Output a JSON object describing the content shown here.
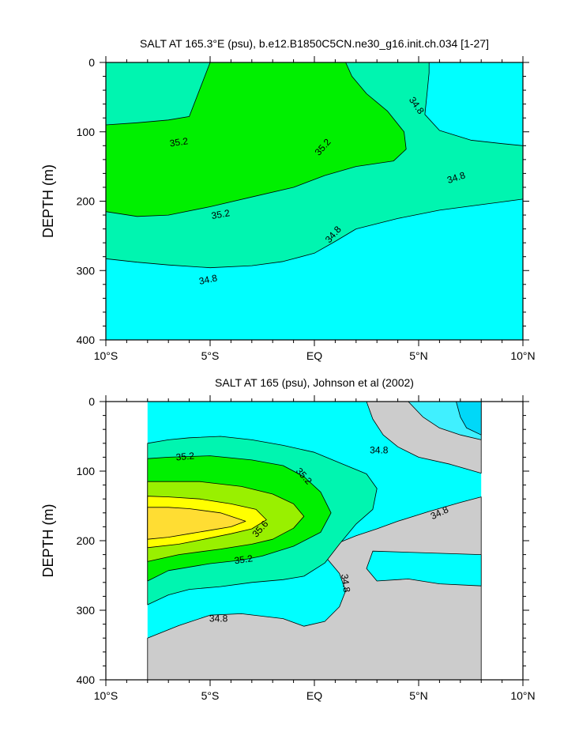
{
  "chart_data": [
    {
      "type": "heatmap",
      "title": "SALT AT 165.3°E (psu), b.e12.B1850C5CN.ne30_g16.init.ch.034 [1-27]",
      "ylabel": "DEPTH (m)",
      "xlabel": "",
      "xlim": [
        -10,
        10
      ],
      "ylim": [
        400,
        0
      ],
      "x_ticks": [
        {
          "value": -10,
          "label": "10°S"
        },
        {
          "value": -5,
          "label": "5°S"
        },
        {
          "value": 0,
          "label": "EQ"
        },
        {
          "value": 5,
          "label": "5°N"
        },
        {
          "value": 10,
          "label": "10°N"
        }
      ],
      "y_ticks": [
        {
          "value": 0,
          "label": "0"
        },
        {
          "value": 100,
          "label": "100"
        },
        {
          "value": 200,
          "label": "200"
        },
        {
          "value": 300,
          "label": "300"
        },
        {
          "value": 400,
          "label": "400"
        }
      ],
      "contour_levels": [
        34.8,
        35.2
      ],
      "colors": {
        "lt_34.8": "#00ffff",
        "34.8_35.2": "#00f5b0",
        "gt_35.2": "#00f000"
      },
      "regions": [
        {
          "level": "34.8-35.2",
          "points": [
            [
              -10,
              0
            ],
            [
              10,
              0
            ],
            [
              10,
              400
            ],
            [
              -10,
              400
            ]
          ]
        },
        {
          "level": "<34.8",
          "points": [
            [
              -10,
              283
            ],
            [
              -8.5,
              288
            ],
            [
              -7,
              292
            ],
            [
              -5,
              296
            ],
            [
              -3,
              293
            ],
            [
              -1.5,
              287
            ],
            [
              0,
              275
            ],
            [
              1,
              258
            ],
            [
              2,
              240
            ],
            [
              4,
              225
            ],
            [
              6,
              213
            ],
            [
              8,
              205
            ],
            [
              10,
              197
            ],
            [
              10,
              400
            ],
            [
              -10,
              400
            ]
          ]
        },
        {
          "level": "<34.8",
          "points": [
            [
              5.5,
              0
            ],
            [
              10,
              0
            ],
            [
              10,
              120
            ],
            [
              9,
              117
            ],
            [
              7.5,
              112
            ],
            [
              6,
              98
            ],
            [
              5.3,
              75
            ],
            [
              5.4,
              45
            ],
            [
              5.5,
              15
            ]
          ]
        },
        {
          "level": ">35.2",
          "points": [
            [
              -10,
              90
            ],
            [
              -8.5,
              87
            ],
            [
              -7,
              83
            ],
            [
              -6,
              78
            ],
            [
              -5,
              0
            ],
            [
              1.5,
              0
            ],
            [
              1.8,
              20
            ],
            [
              2.5,
              45
            ],
            [
              3.5,
              70
            ],
            [
              4.3,
              100
            ],
            [
              4.4,
              125
            ],
            [
              3.8,
              142
            ],
            [
              2,
              150
            ],
            [
              0.5,
              163
            ],
            [
              -1,
              180
            ],
            [
              -3,
              194
            ],
            [
              -5,
              208
            ],
            [
              -7,
              220
            ],
            [
              -8.5,
              222
            ],
            [
              -10,
              215
            ]
          ]
        }
      ],
      "contour_labels": [
        {
          "text": "35.2",
          "x": -6.5,
          "y": 115,
          "angle": -8
        },
        {
          "text": "35.2",
          "x": 0.4,
          "y": 122,
          "angle": -48
        },
        {
          "text": "35.2",
          "x": -4.5,
          "y": 219,
          "angle": -10
        },
        {
          "text": "34.8",
          "x": 4.9,
          "y": 62,
          "angle": 55
        },
        {
          "text": "34.8",
          "x": 6.8,
          "y": 166,
          "angle": -18
        },
        {
          "text": "34.8",
          "x": 0.9,
          "y": 248,
          "angle": -48
        },
        {
          "text": "34.8",
          "x": -5.1,
          "y": 313,
          "angle": -12
        }
      ]
    },
    {
      "type": "heatmap",
      "title": "SALT AT 165 (psu), Johnson et al (2002)",
      "ylabel": "DEPTH (m)",
      "xlabel": "",
      "xlim": [
        -10,
        10
      ],
      "ylim": [
        400,
        0
      ],
      "data_xlim": [
        -8,
        8
      ],
      "x_ticks": [
        {
          "value": -10,
          "label": "10°S"
        },
        {
          "value": -5,
          "label": "5°S"
        },
        {
          "value": 0,
          "label": "EQ"
        },
        {
          "value": 5,
          "label": "5°N"
        },
        {
          "value": 10,
          "label": "10°N"
        }
      ],
      "y_ticks": [
        {
          "value": 0,
          "label": "0"
        },
        {
          "value": 100,
          "label": "100"
        },
        {
          "value": 200,
          "label": "200"
        },
        {
          "value": 300,
          "label": "300"
        },
        {
          "value": 400,
          "label": "400"
        }
      ],
      "contour_levels": [
        34.6,
        34.8,
        35.0,
        35.2,
        35.4,
        35.6
      ],
      "colors": {
        "lt_34.6": "#00d8f8",
        "34.6_34.8": "#40f0ff",
        "34.8_35.0": "#00ffff",
        "35.0_35.2": "#00f5b0",
        "35.2_35.4": "#00f000",
        "35.4_35.6": "#99f000",
        "gt_35.6": "#ffff00",
        "core": "#ffdd33"
      },
      "regions": [
        {
          "level": "34.8-35.0",
          "points": [
            [
              -8,
              0
            ],
            [
              8,
              0
            ],
            [
              8,
              400
            ],
            [
              -8,
              400
            ]
          ]
        },
        {
          "level": "<34.8",
          "points": [
            [
              -8,
              340
            ],
            [
              -6.5,
              322
            ],
            [
              -5,
              307
            ],
            [
              -3.5,
              305
            ],
            [
              -1.5,
              312
            ],
            [
              -0.5,
              323
            ],
            [
              0.5,
              316
            ],
            [
              1.2,
              295
            ],
            [
              1.5,
              272
            ],
            [
              1.2,
              247
            ],
            [
              0.5,
              222
            ],
            [
              1,
              205
            ],
            [
              2,
              193
            ],
            [
              3,
              183
            ],
            [
              4,
              172
            ],
            [
              5.5,
              158
            ],
            [
              7,
              145
            ],
            [
              8,
              137
            ],
            [
              8,
              400
            ],
            [
              -8,
              400
            ]
          ]
        },
        {
          "level": "<34.8",
          "points": [
            [
              2.5,
              0
            ],
            [
              8,
              0
            ],
            [
              8,
              103
            ],
            [
              6.5,
              90
            ],
            [
              5,
              80
            ],
            [
              4,
              65
            ],
            [
              3.3,
              48
            ],
            [
              2.8,
              25
            ]
          ]
        },
        {
          "level": "34.6-34.8",
          "points": [
            [
              4.5,
              0
            ],
            [
              8,
              0
            ],
            [
              8,
              55
            ],
            [
              7,
              48
            ],
            [
              6,
              38
            ],
            [
              5.2,
              22
            ]
          ]
        },
        {
          "level": "<34.6",
          "points": [
            [
              6.8,
              0
            ],
            [
              8,
              0
            ],
            [
              8,
              48
            ],
            [
              7.3,
              38
            ],
            [
              7,
              22
            ]
          ]
        },
        {
          "level": "34.8-35.0",
          "points": [
            [
              2.8,
              215
            ],
            [
              8,
              220
            ],
            [
              8,
              265
            ],
            [
              6,
              262
            ],
            [
              4.5,
              255
            ],
            [
              3,
              258
            ],
            [
              2.5,
              240
            ]
          ]
        },
        {
          "level": "35.0-35.2",
          "points": [
            [
              -8,
              292
            ],
            [
              -7,
              278
            ],
            [
              -6,
              270
            ],
            [
              -4.5,
              266
            ],
            [
              -3,
              260
            ],
            [
              -1.5,
              256
            ],
            [
              -0.5,
              251
            ],
            [
              0.5,
              232
            ],
            [
              1.2,
              205
            ],
            [
              2,
              176
            ],
            [
              2.8,
              155
            ],
            [
              3,
              125
            ],
            [
              2.5,
              104
            ],
            [
              1.2,
              88
            ],
            [
              0,
              73
            ],
            [
              -1.5,
              63
            ],
            [
              -3,
              55
            ],
            [
              -4.5,
              50
            ],
            [
              -6,
              52
            ],
            [
              -7,
              55
            ],
            [
              -8,
              60
            ]
          ]
        },
        {
          "level": "35.2-35.4",
          "points": [
            [
              -8,
              258
            ],
            [
              -7,
              243
            ],
            [
              -5,
              233
            ],
            [
              -3.5,
              228
            ],
            [
              -2.5,
              222
            ],
            [
              -1,
              208
            ],
            [
              0.3,
              188
            ],
            [
              0.8,
              160
            ],
            [
              0.3,
              130
            ],
            [
              -0.5,
              108
            ],
            [
              -1.5,
              92
            ],
            [
              -3,
              84
            ],
            [
              -5,
              78
            ],
            [
              -7,
              80
            ],
            [
              -8,
              82
            ]
          ]
        },
        {
          "level": "35.4-35.6",
          "points": [
            [
              -8,
              230
            ],
            [
              -6.5,
              220
            ],
            [
              -4.5,
              212
            ],
            [
              -3,
              205
            ],
            [
              -2,
              198
            ],
            [
              -1,
              182
            ],
            [
              -0.5,
              165
            ],
            [
              -1,
              147
            ],
            [
              -2,
              133
            ],
            [
              -3.5,
              122
            ],
            [
              -5.5,
              115
            ],
            [
              -8,
              115
            ]
          ]
        },
        {
          "level": ">35.6",
          "points": [
            [
              -8,
              210
            ],
            [
              -6.5,
              205
            ],
            [
              -5.3,
              198
            ],
            [
              -4,
              190
            ],
            [
              -3,
              183
            ],
            [
              -2.3,
              170
            ],
            [
              -2.8,
              155
            ],
            [
              -4,
              147
            ],
            [
              -5.5,
              140
            ],
            [
              -7,
              137
            ],
            [
              -8,
              136
            ]
          ]
        },
        {
          "level": "core",
          "points": [
            [
              -8,
              198
            ],
            [
              -7,
              195
            ],
            [
              -6,
              190
            ],
            [
              -5,
              185
            ],
            [
              -4,
              180
            ],
            [
              -3.3,
              172
            ],
            [
              -4.5,
              160
            ],
            [
              -6,
              154
            ],
            [
              -7,
              152
            ],
            [
              -8,
              152
            ]
          ]
        }
      ],
      "contour_labels": [
        {
          "text": "35.2",
          "x": -6.2,
          "y": 79,
          "angle": -5
        },
        {
          "text": "35.2",
          "x": -0.5,
          "y": 107,
          "angle": 48
        },
        {
          "text": "35.6",
          "x": -2.6,
          "y": 183,
          "angle": -48
        },
        {
          "text": "35.2",
          "x": -3.4,
          "y": 227,
          "angle": -8
        },
        {
          "text": "34.8",
          "x": 3.1,
          "y": 70,
          "angle": 0
        },
        {
          "text": "34.8",
          "x": 6.0,
          "y": 160,
          "angle": -25
        },
        {
          "text": "34.8",
          "x": 1.5,
          "y": 261,
          "angle": 82
        },
        {
          "text": "34.8",
          "x": -4.6,
          "y": 312,
          "angle": 0
        }
      ]
    }
  ]
}
